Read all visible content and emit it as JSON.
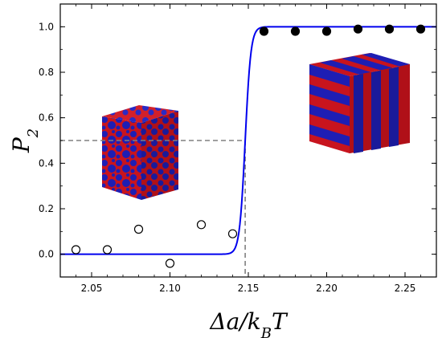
{
  "chart_data": {
    "type": "scatter",
    "title": "",
    "xlabel": "Δa/k_B T",
    "ylabel": "P_2",
    "xlim": [
      2.03,
      2.27
    ],
    "ylim": [
      -0.1,
      1.1
    ],
    "x_ticks": [
      "2.05",
      "2.10",
      "2.15",
      "2.20",
      "2.25"
    ],
    "y_ticks": [
      "0.0",
      "0.2",
      "0.4",
      "0.6",
      "0.8",
      "1.0"
    ],
    "grid": false,
    "series": [
      {
        "marker": "open-circle",
        "x": [
          2.04,
          2.06,
          2.08,
          2.1,
          2.12,
          2.14
        ],
        "y": [
          0.02,
          0.02,
          0.11,
          -0.04,
          0.13,
          0.09
        ]
      },
      {
        "marker": "filled-circle",
        "x": [
          2.16,
          2.18,
          2.2,
          2.22,
          2.24,
          2.26
        ],
        "y": [
          0.98,
          0.98,
          0.98,
          0.99,
          0.99,
          0.99
        ]
      }
    ],
    "fit_curve": {
      "type": "sigmoid",
      "x0": 2.148,
      "width": 0.0018,
      "lower": 0.0,
      "upper": 1.0,
      "color": "#0000ee"
    },
    "reference_lines": {
      "y": 0.5,
      "x": 2.148,
      "style": "dashed",
      "color": "#808080"
    },
    "insets": [
      {
        "name": "disordered-morphology-cube",
        "colors": [
          "#c8141e",
          "#1e1eb4"
        ]
      },
      {
        "name": "lamellar-morphology-cube",
        "colors": [
          "#c8141e",
          "#1e1eb4"
        ]
      }
    ]
  }
}
